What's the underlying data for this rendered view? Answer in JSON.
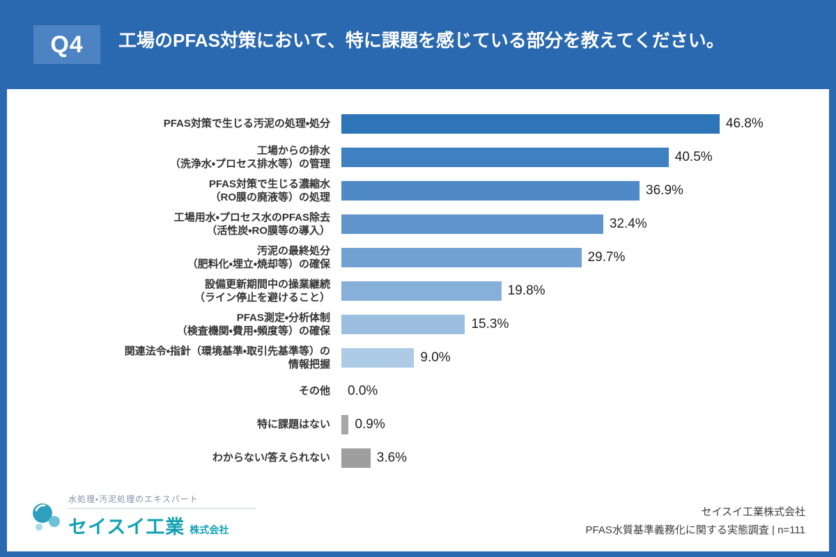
{
  "header": {
    "q_label": "Q4",
    "title": "工場のPFAS対策において、特に課題を感じている部分を教えてください。"
  },
  "chart_data": {
    "type": "bar",
    "orientation": "horizontal",
    "title": "工場のPFAS対策において、特に課題を感じている部分",
    "xlim": [
      0,
      50
    ],
    "grid": false,
    "categories": [
      "PFAS対策で生じる汚泥の処理・処分",
      "工場からの排水\n（洗浄水・プロセス排水等）の管理",
      "PFAS対策で生じる濃縮水\n（RO膜の廃液等）の処理",
      "工場用水・プロセス水のPFAS除去\n（活性炭・RO膜等の導入）",
      "汚泥の最終処分\n（肥料化・埋立・焼却等）の確保",
      "設備更新期間中の操業継続\n（ライン停止を避けること）",
      "PFAS測定・分析体制\n（検査機関・費用・頻度等）の確保",
      "関連法令・指針（環境基準・取引先基準等）の\n情報把握",
      "その他",
      "特に課題はない",
      "わからない/答えられない"
    ],
    "values": [
      46.8,
      40.5,
      36.9,
      32.4,
      29.7,
      19.8,
      15.3,
      9.0,
      0.0,
      0.9,
      3.6
    ],
    "value_labels": [
      "46.8%",
      "40.5%",
      "36.9%",
      "32.4%",
      "29.7%",
      "19.8%",
      "15.3%",
      "9.0%",
      "0.0%",
      "0.9%",
      "3.6%"
    ],
    "bar_colors": [
      "#2e74b8",
      "#3f80c1",
      "#4f8ac6",
      "#6095cc",
      "#72a2d3",
      "#86afd9",
      "#9abde0",
      "#adcbe7",
      "#adcbe7",
      "#a7a7a7",
      "#9e9e9e"
    ]
  },
  "footer": {
    "tagline": "水処理・汚泥処理のエキスパート",
    "company": "セイスイ工業",
    "company_suffix": "株式会社",
    "source_company": "セイスイ工業株式会社",
    "source_survey": "PFAS水質基準義務化に関する実態調査 | n=111"
  },
  "colors": {
    "background": "#2a68af",
    "badge": "#4d83c3",
    "card": "#ffffff",
    "brand_teal": "#12a0b3",
    "gray_bar": "#a7a7a7"
  }
}
